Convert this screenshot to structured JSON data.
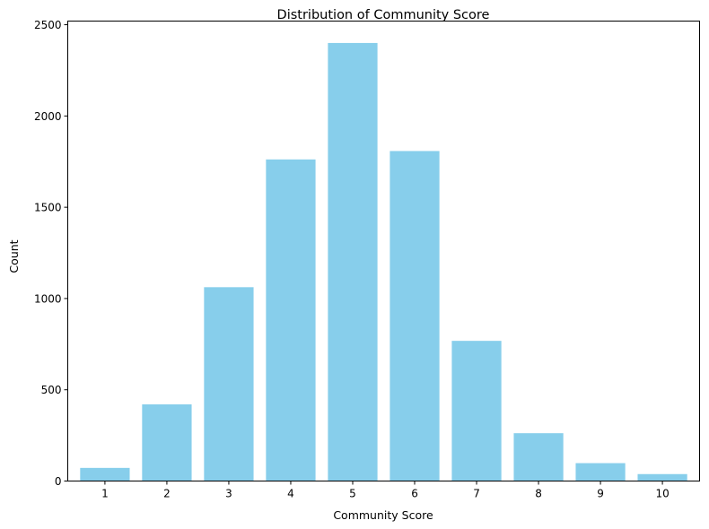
{
  "chart_data": {
    "type": "bar",
    "title": "Distribution of Community Score",
    "xlabel": "Community Score",
    "ylabel": "Count",
    "categories": [
      "1",
      "2",
      "3",
      "4",
      "5",
      "6",
      "7",
      "8",
      "9",
      "10"
    ],
    "values": [
      72,
      420,
      1062,
      1762,
      2400,
      1808,
      768,
      262,
      98,
      38
    ],
    "ylim": [
      0,
      2520
    ],
    "yticks": [
      0,
      500,
      1000,
      1500,
      2000,
      2500
    ],
    "grid": false,
    "legend": "none",
    "bar_color": "#87CEEB"
  }
}
